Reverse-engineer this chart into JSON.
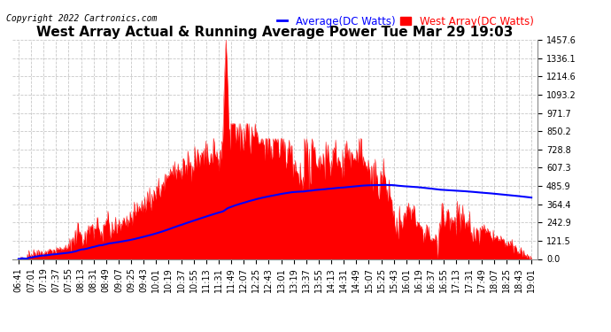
{
  "title": "West Array Actual & Running Average Power Tue Mar 29 19:03",
  "copyright": "Copyright 2022 Cartronics.com",
  "legend_avg": "Average(DC Watts)",
  "legend_west": "West Array(DC Watts)",
  "avg_color": "#0000ff",
  "west_color": "#ff0000",
  "fill_color": "#ff0000",
  "bg_color": "#ffffff",
  "grid_color": "#c8c8c8",
  "yticks": [
    0.0,
    121.5,
    242.9,
    364.4,
    485.9,
    607.3,
    728.8,
    850.2,
    971.7,
    1093.2,
    1214.6,
    1336.1,
    1457.6
  ],
  "ymax": 1457.6,
  "xtick_labels": [
    "06:41",
    "07:01",
    "07:19",
    "07:37",
    "07:55",
    "08:13",
    "08:31",
    "08:49",
    "09:07",
    "09:25",
    "09:43",
    "10:01",
    "10:19",
    "10:37",
    "10:55",
    "11:13",
    "11:31",
    "11:49",
    "12:07",
    "12:25",
    "12:43",
    "13:01",
    "13:19",
    "13:37",
    "13:55",
    "14:13",
    "14:31",
    "14:49",
    "15:07",
    "15:25",
    "15:43",
    "16:01",
    "16:19",
    "16:37",
    "16:55",
    "17:13",
    "17:31",
    "17:49",
    "18:07",
    "18:25",
    "18:43",
    "19:01"
  ],
  "title_fontsize": 11,
  "tick_fontsize": 7,
  "legend_fontsize": 8.5,
  "copyright_fontsize": 7
}
